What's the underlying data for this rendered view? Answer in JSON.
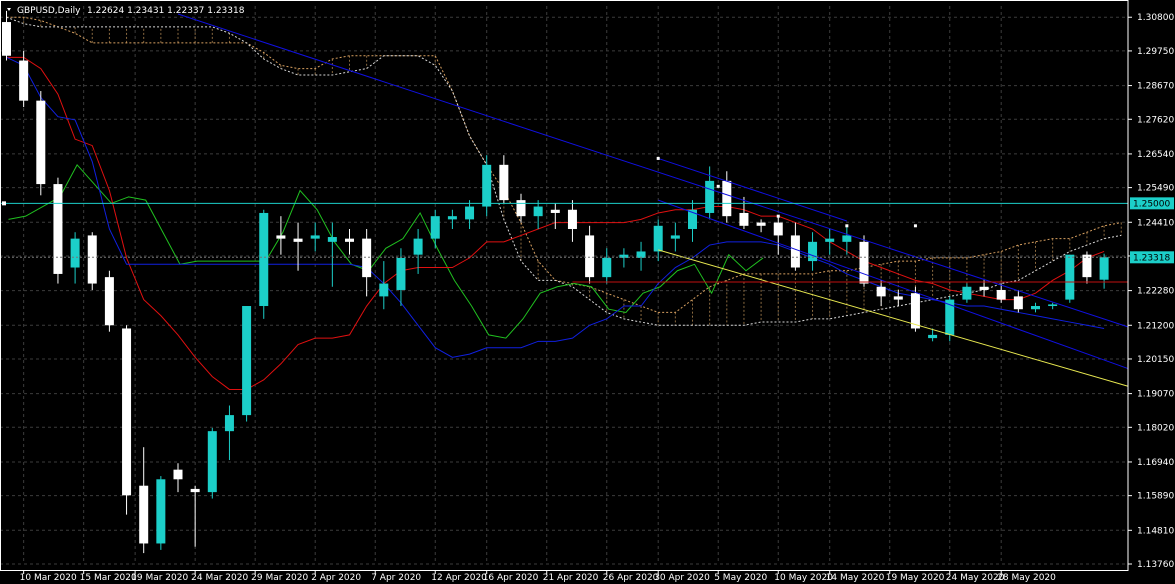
{
  "header": {
    "symbol": "GBPUSD,Daily",
    "ohlc": "1.22624 1.23431 1.22337 1.23318"
  },
  "colors": {
    "background": "#000000",
    "grid": "#3c3c3c",
    "bull_candle": "#1ccfc9",
    "bear_candle": "#ffffff",
    "trendline_blue": "#1010e0",
    "trendline_yellow": "#e8e850",
    "horizontal_level": "#1ccfc9",
    "tenkan": "#e01010",
    "kijun": "#1020e0",
    "chikou": "#20c020",
    "senkou_span_a": "#d8a060",
    "senkou_span_b": "#d8d8d8",
    "price_tag": "#1ccfc9"
  },
  "chart_data": {
    "type": "candlestick",
    "symbol": "GBPUSD",
    "timeframe": "Daily",
    "ylim": [
      1.1376,
      1.3115
    ],
    "y_ticks": [
      "1.30800",
      "1.29750",
      "1.28670",
      "1.27620",
      "1.26540",
      "1.25490",
      "1.24410",
      "1.23360",
      "1.22280",
      "1.21200",
      "1.20150",
      "1.19070",
      "1.18020",
      "1.16940",
      "1.15890",
      "1.14810",
      "1.13760"
    ],
    "y_tick_values": [
      1.308,
      1.2975,
      1.2867,
      1.2762,
      1.2654,
      1.2549,
      1.2441,
      1.2336,
      1.2228,
      1.212,
      1.2015,
      1.1907,
      1.1802,
      1.1694,
      1.1589,
      1.1481,
      1.1376
    ],
    "x_ticks": [
      "10 Mar 2020",
      "15 Mar 2020",
      "19 Mar 2020",
      "24 Mar 2020",
      "29 Mar 2020",
      "2 Apr 2020",
      "7 Apr 2020",
      "12 Apr 2020",
      "16 Apr 2020",
      "21 Apr 2020",
      "26 Apr 2020",
      "30 Apr 2020",
      "5 May 2020",
      "10 May 2020",
      "14 May 2020",
      "19 May 2020",
      "24 May 2020",
      "28 May 2020"
    ],
    "x_tick_bars": [
      1,
      4.5,
      7.5,
      11,
      14.5,
      18,
      21.5,
      25,
      28,
      31.5,
      35,
      38,
      41.5,
      45,
      48,
      51.5,
      55,
      58
    ],
    "horizontal_level": {
      "value": 1.25,
      "label": "1.25000"
    },
    "current_price": {
      "value": 1.23318,
      "label": "1.23318"
    },
    "candles": [
      {
        "o": 1.3065,
        "h": 1.31,
        "l": 1.2945,
        "c": 1.296
      },
      {
        "o": 1.2945,
        "h": 1.2975,
        "l": 1.28,
        "c": 1.282
      },
      {
        "o": 1.282,
        "h": 1.285,
        "l": 1.2525,
        "c": 1.256
      },
      {
        "o": 1.256,
        "h": 1.258,
        "l": 1.225,
        "c": 1.228
      },
      {
        "o": 1.23,
        "h": 1.241,
        "l": 1.225,
        "c": 1.239
      },
      {
        "o": 1.24,
        "h": 1.241,
        "l": 1.223,
        "c": 1.225
      },
      {
        "o": 1.227,
        "h": 1.229,
        "l": 1.21,
        "c": 1.212
      },
      {
        "o": 1.211,
        "h": 1.212,
        "l": 1.153,
        "c": 1.159
      },
      {
        "o": 1.162,
        "h": 1.174,
        "l": 1.141,
        "c": 1.144
      },
      {
        "o": 1.144,
        "h": 1.165,
        "l": 1.142,
        "c": 1.164
      },
      {
        "o": 1.167,
        "h": 1.169,
        "l": 1.16,
        "c": 1.164
      },
      {
        "o": 1.161,
        "h": 1.162,
        "l": 1.143,
        "c": 1.16
      },
      {
        "o": 1.16,
        "h": 1.18,
        "l": 1.158,
        "c": 1.179
      },
      {
        "o": 1.179,
        "h": 1.187,
        "l": 1.17,
        "c": 1.184
      },
      {
        "o": 1.184,
        "h": 1.218,
        "l": 1.182,
        "c": 1.218
      },
      {
        "o": 1.218,
        "h": 1.248,
        "l": 1.214,
        "c": 1.247
      },
      {
        "o": 1.24,
        "h": 1.246,
        "l": 1.234,
        "c": 1.239
      },
      {
        "o": 1.239,
        "h": 1.244,
        "l": 1.229,
        "c": 1.238
      },
      {
        "o": 1.239,
        "h": 1.244,
        "l": 1.235,
        "c": 1.24
      },
      {
        "o": 1.238,
        "h": 1.244,
        "l": 1.224,
        "c": 1.2395
      },
      {
        "o": 1.239,
        "h": 1.242,
        "l": 1.234,
        "c": 1.238
      },
      {
        "o": 1.239,
        "h": 1.242,
        "l": 1.221,
        "c": 1.227
      },
      {
        "o": 1.221,
        "h": 1.232,
        "l": 1.217,
        "c": 1.225
      },
      {
        "o": 1.223,
        "h": 1.236,
        "l": 1.218,
        "c": 1.233
      },
      {
        "o": 1.234,
        "h": 1.242,
        "l": 1.228,
        "c": 1.239
      },
      {
        "o": 1.239,
        "h": 1.248,
        "l": 1.236,
        "c": 1.246
      },
      {
        "o": 1.245,
        "h": 1.248,
        "l": 1.242,
        "c": 1.246
      },
      {
        "o": 1.245,
        "h": 1.251,
        "l": 1.242,
        "c": 1.249
      },
      {
        "o": 1.249,
        "h": 1.265,
        "l": 1.246,
        "c": 1.262
      },
      {
        "o": 1.262,
        "h": 1.265,
        "l": 1.25,
        "c": 1.251
      },
      {
        "o": 1.251,
        "h": 1.253,
        "l": 1.244,
        "c": 1.246
      },
      {
        "o": 1.246,
        "h": 1.251,
        "l": 1.242,
        "c": 1.249
      },
      {
        "o": 1.248,
        "h": 1.25,
        "l": 1.242,
        "c": 1.247
      },
      {
        "o": 1.248,
        "h": 1.251,
        "l": 1.238,
        "c": 1.242
      },
      {
        "o": 1.24,
        "h": 1.243,
        "l": 1.225,
        "c": 1.227
      },
      {
        "o": 1.227,
        "h": 1.236,
        "l": 1.225,
        "c": 1.233
      },
      {
        "o": 1.233,
        "h": 1.236,
        "l": 1.23,
        "c": 1.234
      },
      {
        "o": 1.233,
        "h": 1.238,
        "l": 1.229,
        "c": 1.235
      },
      {
        "o": 1.235,
        "h": 1.245,
        "l": 1.232,
        "c": 1.243
      },
      {
        "o": 1.239,
        "h": 1.244,
        "l": 1.235,
        "c": 1.24
      },
      {
        "o": 1.242,
        "h": 1.251,
        "l": 1.238,
        "c": 1.248
      },
      {
        "o": 1.247,
        "h": 1.2615,
        "l": 1.245,
        "c": 1.257
      },
      {
        "o": 1.257,
        "h": 1.26,
        "l": 1.244,
        "c": 1.246
      },
      {
        "o": 1.247,
        "h": 1.252,
        "l": 1.242,
        "c": 1.243
      },
      {
        "o": 1.244,
        "h": 1.245,
        "l": 1.241,
        "c": 1.243
      },
      {
        "o": 1.244,
        "h": 1.246,
        "l": 1.234,
        "c": 1.24
      },
      {
        "o": 1.24,
        "h": 1.244,
        "l": 1.229,
        "c": 1.23
      },
      {
        "o": 1.232,
        "h": 1.241,
        "l": 1.229,
        "c": 1.238
      },
      {
        "o": 1.238,
        "h": 1.242,
        "l": 1.234,
        "c": 1.239
      },
      {
        "o": 1.238,
        "h": 1.243,
        "l": 1.234,
        "c": 1.24
      },
      {
        "o": 1.238,
        "h": 1.24,
        "l": 1.224,
        "c": 1.225
      },
      {
        "o": 1.224,
        "h": 1.226,
        "l": 1.218,
        "c": 1.221
      },
      {
        "o": 1.221,
        "h": 1.223,
        "l": 1.218,
        "c": 1.22
      },
      {
        "o": 1.222,
        "h": 1.224,
        "l": 1.21,
        "c": 1.211
      },
      {
        "o": 1.208,
        "h": 1.211,
        "l": 1.207,
        "c": 1.209
      },
      {
        "o": 1.209,
        "h": 1.221,
        "l": 1.207,
        "c": 1.22
      },
      {
        "o": 1.22,
        "h": 1.225,
        "l": 1.219,
        "c": 1.224
      },
      {
        "o": 1.224,
        "h": 1.226,
        "l": 1.221,
        "c": 1.223
      },
      {
        "o": 1.223,
        "h": 1.225,
        "l": 1.219,
        "c": 1.22
      },
      {
        "o": 1.221,
        "h": 1.223,
        "l": 1.216,
        "c": 1.217
      },
      {
        "o": 1.217,
        "h": 1.219,
        "l": 1.216,
        "c": 1.218
      },
      {
        "o": 1.218,
        "h": 1.219,
        "l": 1.217,
        "c": 1.2185
      },
      {
        "o": 1.22,
        "h": 1.234,
        "l": 1.219,
        "c": 1.234
      },
      {
        "o": 1.234,
        "h": 1.235,
        "l": 1.225,
        "c": 1.227
      },
      {
        "o": 1.2262,
        "h": 1.2343,
        "l": 1.2234,
        "c": 1.2332
      }
    ],
    "series": [
      {
        "name": "Tenkan-sen",
        "values": [
          1.2955,
          1.2955,
          1.292,
          1.284,
          1.27,
          1.268,
          1.254,
          1.233,
          1.22,
          1.215,
          1.209,
          1.202,
          1.196,
          1.192,
          1.192,
          1.195,
          1.2,
          1.206,
          1.208,
          1.208,
          1.209,
          1.218,
          1.225,
          1.229,
          1.23,
          1.23,
          1.23,
          1.233,
          1.238,
          1.238,
          1.24,
          1.242,
          1.244,
          1.244,
          1.244,
          1.244,
          1.244,
          1.245,
          1.247,
          1.248,
          1.248,
          1.249,
          1.249,
          1.248,
          1.246,
          1.246,
          1.244,
          1.242,
          1.238,
          1.235,
          1.232,
          1.23,
          1.228,
          1.226,
          1.225,
          1.223,
          1.222,
          1.221,
          1.22,
          1.22,
          1.222,
          1.226,
          1.229,
          1.233,
          1.235
        ]
      },
      {
        "name": "Kijun-sen",
        "values": [
          1.2955,
          1.293,
          1.283,
          1.277,
          1.276,
          1.263,
          1.242,
          1.231,
          1.231,
          1.231,
          1.231,
          1.231,
          1.231,
          1.231,
          1.231,
          1.231,
          1.231,
          1.231,
          1.231,
          1.231,
          1.231,
          1.23,
          1.225,
          1.219,
          1.212,
          1.205,
          1.202,
          1.203,
          1.205,
          1.205,
          1.205,
          1.207,
          1.207,
          1.208,
          1.212,
          1.214,
          1.218,
          1.218,
          1.225,
          1.23,
          1.233,
          1.237,
          1.238,
          1.238,
          1.238,
          1.237,
          1.235,
          1.233,
          1.231,
          1.228,
          1.226,
          1.224,
          1.222,
          1.221,
          1.22,
          1.219,
          1.218,
          1.218,
          1.217,
          1.216,
          1.215,
          1.214,
          1.213,
          1.212,
          1.211
        ]
      }
    ]
  }
}
